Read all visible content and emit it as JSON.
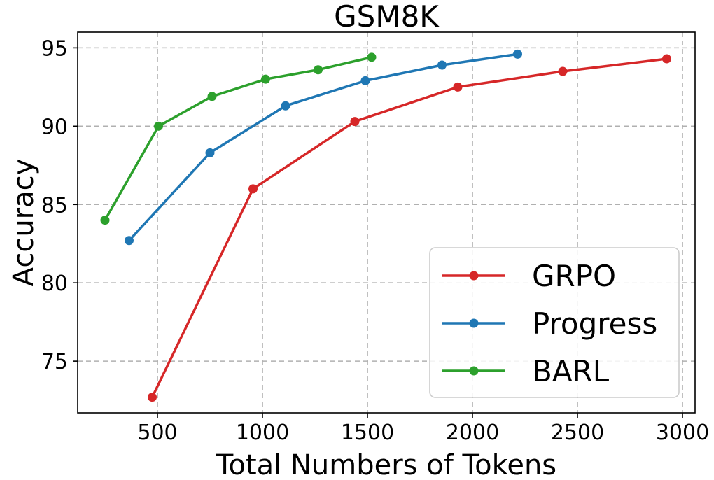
{
  "chart_data": {
    "type": "line",
    "title": "GSM8K",
    "xlabel": "Total Numbers of Tokens",
    "ylabel": "Accuracy",
    "xlim": [
      120,
      3060
    ],
    "ylim": [
      71.7,
      96.0
    ],
    "xticks": [
      500,
      1000,
      1500,
      2000,
      2500,
      3000
    ],
    "yticks": [
      75,
      80,
      85,
      90,
      95
    ],
    "grid": true,
    "legend_position": "bottom-right",
    "series": [
      {
        "name": "GRPO",
        "color": "#d62728",
        "points": [
          {
            "x": 475,
            "y": 72.7
          },
          {
            "x": 955,
            "y": 86.0
          },
          {
            "x": 1440,
            "y": 90.3
          },
          {
            "x": 1930,
            "y": 92.5
          },
          {
            "x": 2430,
            "y": 93.5
          },
          {
            "x": 2925,
            "y": 94.3
          }
        ]
      },
      {
        "name": "Progress",
        "color": "#1f77b4",
        "points": [
          {
            "x": 365,
            "y": 82.7
          },
          {
            "x": 750,
            "y": 88.3
          },
          {
            "x": 1110,
            "y": 91.3
          },
          {
            "x": 1490,
            "y": 92.9
          },
          {
            "x": 1855,
            "y": 93.9
          },
          {
            "x": 2215,
            "y": 94.6
          }
        ]
      },
      {
        "name": "BARL",
        "color": "#2ca02c",
        "points": [
          {
            "x": 250,
            "y": 84.0
          },
          {
            "x": 505,
            "y": 90.0
          },
          {
            "x": 760,
            "y": 91.9
          },
          {
            "x": 1015,
            "y": 93.0
          },
          {
            "x": 1265,
            "y": 93.6
          },
          {
            "x": 1520,
            "y": 94.4
          }
        ]
      }
    ]
  }
}
